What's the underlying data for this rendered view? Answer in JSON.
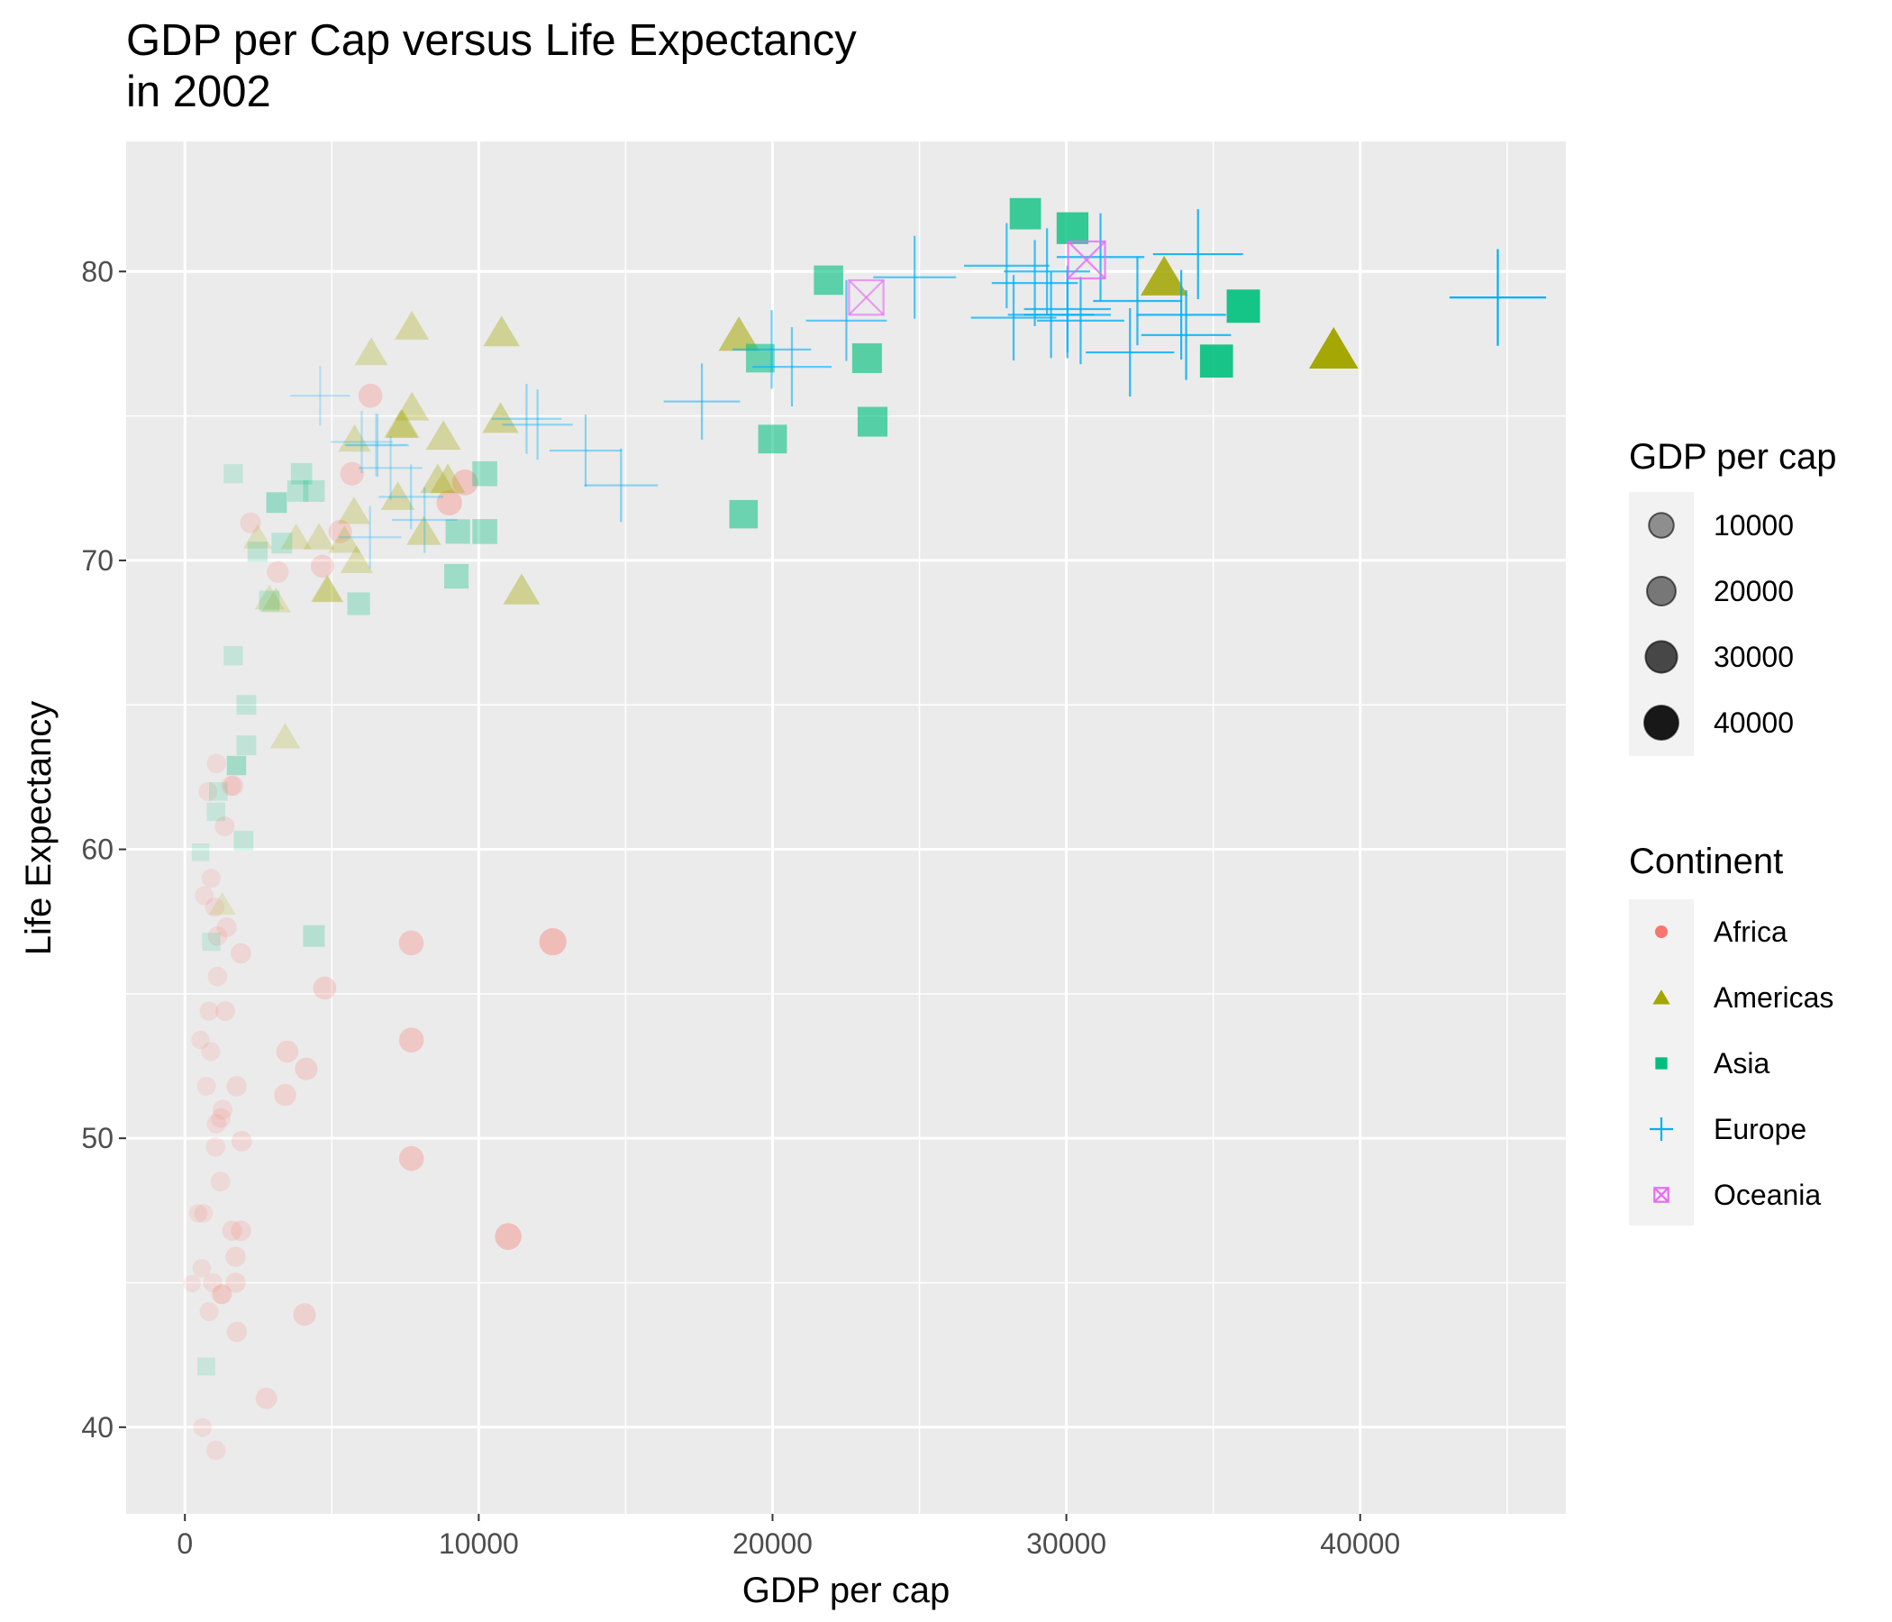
{
  "chart_data": {
    "type": "scatter",
    "title_line1": "GDP per Cap versus Life Expectancy",
    "title_line2": "in 2002",
    "xlabel": "GDP per cap",
    "ylabel": "Life Expectancy",
    "xlim": [
      -2000,
      47000
    ],
    "ylim": [
      37,
      84.5
    ],
    "x_ticks": [
      0,
      10000,
      20000,
      30000,
      40000
    ],
    "y_ticks": [
      40,
      50,
      60,
      70,
      80
    ],
    "grid": true,
    "size_legend": {
      "title": "GDP per cap",
      "entries": [
        {
          "label": "10000",
          "value": 10000
        },
        {
          "label": "20000",
          "value": 20000
        },
        {
          "label": "30000",
          "value": 30000
        },
        {
          "label": "40000",
          "value": 40000
        }
      ]
    },
    "color_legend": {
      "title": "Continent",
      "entries": [
        {
          "label": "Africa",
          "shape": "circle",
          "color": "#F8766D"
        },
        {
          "label": "Americas",
          "shape": "triangle",
          "color": "#A3A500"
        },
        {
          "label": "Asia",
          "shape": "square",
          "color": "#00BF7D"
        },
        {
          "label": "Europe",
          "shape": "plus",
          "color": "#00B0F6"
        },
        {
          "label": "Oceania",
          "shape": "boxx",
          "color": "#E76BF3"
        }
      ]
    },
    "series": [
      {
        "name": "Africa",
        "shape": "circle",
        "color": "#F8766D",
        "points": [
          [
            5288,
            71.0
          ],
          [
            2773,
            41.0
          ],
          [
            1373,
            54.4
          ],
          [
            11004,
            46.6
          ],
          [
            1226,
            50.7
          ],
          [
            446,
            47.4
          ],
          [
            1934,
            49.9
          ],
          [
            1764,
            43.3
          ],
          [
            1071,
            50.5
          ],
          [
            1076,
            62.97
          ],
          [
            241,
            44.97
          ],
          [
            3484,
            53.0
          ],
          [
            1908,
            46.8
          ],
          [
            4678,
            69.8
          ],
          [
            12522,
            56.8
          ],
          [
            4758,
            55.2
          ],
          [
            530,
            53.4
          ],
          [
            7703,
            56.76
          ],
          [
            660,
            58.4
          ],
          [
            1111,
            57.0
          ],
          [
            946,
            45.0
          ],
          [
            575,
            45.5
          ],
          [
            1287,
            50.99
          ],
          [
            1275,
            44.6
          ],
          [
            9535,
            72.7
          ],
          [
            894,
            59.0
          ],
          [
            1579,
            62.2
          ],
          [
            1725,
            45.0
          ],
          [
            7710,
            53.4
          ],
          [
            1650,
            62.2
          ],
          [
            1606,
            46.8
          ],
          [
            1044,
            49.7
          ],
          [
            822,
            54.4
          ],
          [
            1726,
            45.9
          ],
          [
            734,
            51.8
          ],
          [
            1240,
            44.6
          ],
          [
            3413,
            51.5
          ],
          [
            4073,
            43.9
          ],
          [
            1057,
            39.2
          ],
          [
            1908,
            56.4
          ],
          [
            882,
            53.0
          ],
          [
            1353,
            60.8
          ],
          [
            7711,
            49.3
          ],
          [
            5691,
            73.0
          ],
          [
            6316,
            75.7
          ],
          [
            3162,
            69.6
          ],
          [
            785,
            62.0
          ],
          [
            633,
            47.4
          ],
          [
            2235,
            71.3
          ],
          [
            823,
            44.0
          ],
          [
            4128,
            52.4
          ],
          [
            600,
            39.99
          ],
          [
            1420,
            57.3
          ],
          [
            1015,
            58.0
          ],
          [
            1111,
            55.6
          ],
          [
            1209,
            48.5
          ],
          [
            1758,
            51.8
          ],
          [
            9000,
            72.0
          ]
        ]
      },
      {
        "name": "Americas",
        "shape": "triangle",
        "color": "#A3A500",
        "points": [
          [
            8798,
            74.3
          ],
          [
            3413,
            63.9
          ],
          [
            8131,
            71.0
          ],
          [
            33329,
            79.8
          ],
          [
            10779,
            77.9
          ],
          [
            5755,
            71.7
          ],
          [
            7724,
            78.1
          ],
          [
            6341,
            77.2
          ],
          [
            4564,
            70.8
          ],
          [
            5774,
            74.2
          ],
          [
            5431,
            70.7
          ],
          [
            4859,
            68.98
          ],
          [
            1271,
            58.1
          ],
          [
            3099,
            68.6
          ],
          [
            7245,
            72.2
          ],
          [
            8948,
            72.8
          ],
          [
            10742,
            74.9
          ],
          [
            2474,
            70.8
          ],
          [
            7356,
            74.7
          ],
          [
            3784,
            70.8
          ],
          [
            7408,
            74.7
          ],
          [
            18856,
            77.8
          ],
          [
            11460,
            68.97
          ],
          [
            39097,
            77.3
          ],
          [
            7727,
            75.3
          ],
          [
            8606,
            72.8
          ],
          [
            5845,
            70.0
          ],
          [
            4830,
            69.0
          ],
          [
            2876,
            68.7
          ]
        ]
      },
      {
        "name": "Asia",
        "shape": "square",
        "color": "#00BF7D",
        "points": [
          [
            727,
            42.1
          ],
          [
            23404,
            74.8
          ],
          [
            1136,
            62.0
          ],
          [
            896,
            56.8
          ],
          [
            3119,
            72.0
          ],
          [
            30209,
            81.5
          ],
          [
            1747,
            62.9
          ],
          [
            2874,
            68.6
          ],
          [
            9241,
            69.45
          ],
          [
            4391,
            57.0
          ],
          [
            21906,
            79.7
          ],
          [
            28605,
            82.0
          ],
          [
            3845,
            72.4
          ],
          [
            1647,
            66.7
          ],
          [
            23217,
            77.0
          ],
          [
            35110,
            76.9
          ],
          [
            10207,
            73.0
          ],
          [
            10207,
            71.0
          ],
          [
            2092,
            65.0
          ],
          [
            2474,
            70.3
          ],
          [
            532,
            59.9
          ],
          [
            1057,
            61.3
          ],
          [
            3119,
            72.0
          ],
          [
            19014,
            71.6
          ],
          [
            36023,
            78.8
          ],
          [
            1647,
            73.0
          ],
          [
            3970,
            73.0
          ],
          [
            19583,
            77.0
          ],
          [
            4390,
            72.4
          ],
          [
            1764,
            62.9
          ],
          [
            1993,
            60.3
          ],
          [
            2092,
            63.6
          ],
          [
            5913,
            68.5
          ],
          [
            9290,
            71.0
          ],
          [
            20000,
            74.2
          ],
          [
            3300,
            70.6
          ]
        ]
      },
      {
        "name": "Europe",
        "shape": "plus",
        "color": "#00B0F6",
        "points": [
          [
            4604,
            75.7
          ],
          [
            32418,
            78.98
          ],
          [
            30486,
            78.3
          ],
          [
            6018,
            74.1
          ],
          [
            7696,
            72.2
          ],
          [
            11628,
            74.9
          ],
          [
            17596,
            75.5
          ],
          [
            32166,
            77.2
          ],
          [
            28204,
            78.4
          ],
          [
            28926,
            79.6
          ],
          [
            30036,
            78.7
          ],
          [
            22514,
            78.3
          ],
          [
            14844,
            72.6
          ],
          [
            31163,
            80.5
          ],
          [
            34077,
            77.8
          ],
          [
            27968,
            80.2
          ],
          [
            6557,
            73.98
          ],
          [
            30035,
            78.5
          ],
          [
            44684,
            79.1
          ],
          [
            8157,
            71.4
          ],
          [
            6300,
            70.8
          ],
          [
            7000,
            73.2
          ],
          [
            19971,
            77.3
          ],
          [
            12002,
            74.7
          ],
          [
            13638,
            73.8
          ],
          [
            20660,
            76.7
          ],
          [
            24836,
            79.8
          ],
          [
            29342,
            80.0
          ],
          [
            34481,
            80.6
          ],
          [
            6508,
            74.0
          ],
          [
            33910,
            78.5
          ],
          [
            29479,
            78.5
          ]
        ]
      },
      {
        "name": "Oceania",
        "shape": "boxx",
        "color": "#E76BF3",
        "points": [
          [
            30688,
            80.4
          ],
          [
            23190,
            79.1
          ]
        ]
      }
    ]
  }
}
